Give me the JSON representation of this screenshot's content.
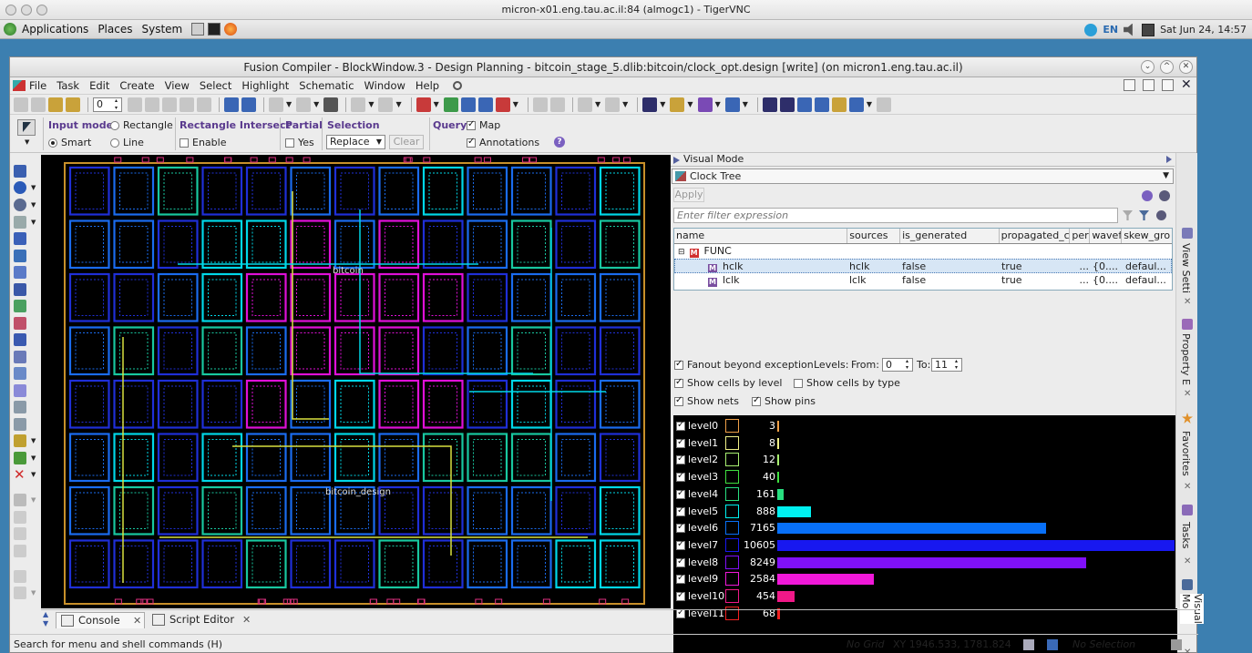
{
  "vnc": {
    "title": "micron-x01.eng.tau.ac.il:84 (almogc1) - TigerVNC"
  },
  "gnome": {
    "menus": [
      "Applications",
      "Places",
      "System"
    ],
    "lang": "EN",
    "clock": "Sat Jun 24, 14:57"
  },
  "window": {
    "title": "Fusion Compiler - BlockWindow.3 - Design Planning - bitcoin_stage_5.dlib:bitcoin/clock_opt.design [write] (on micron1.eng.tau.ac.il)"
  },
  "menubar": [
    "File",
    "Task",
    "Edit",
    "Create",
    "View",
    "Select",
    "Highlight",
    "Schematic",
    "Window",
    "Help"
  ],
  "toolbar": {
    "spin_value": "0"
  },
  "options": {
    "input_mode_label": "Input mode",
    "rectangle": "Rectangle",
    "smart": "Smart",
    "line": "Line",
    "rect_intersect_label": "Rectangle Intersect",
    "enable": "Enable",
    "partial_label": "Partial",
    "yes": "Yes",
    "selection_label": "Selection",
    "selection_value": "Replace",
    "clear": "Clear",
    "query_label": "Query",
    "map": "Map",
    "annotations": "Annotations"
  },
  "canvas": {
    "label_top": "bitcoin",
    "label_mid": "bitcoin_design",
    "grid_colors": [
      "#1f2fd8",
      "#1a6cf0",
      "#00d8e8",
      "#2a1ef0",
      "#8a10f0",
      "#e010d8",
      "#18c8a0"
    ]
  },
  "visual_mode": {
    "header": "Visual Mode",
    "mode": "Clock Tree",
    "apply": "Apply",
    "filter_placeholder": "Enter filter expression",
    "columns": [
      "name",
      "sources",
      "is_generated",
      "propagated_cl",
      "per",
      "wavefo",
      "skew_gro"
    ],
    "group": "FUNC",
    "rows": [
      {
        "name": "hclk",
        "sources": "hclk",
        "is_generated": "false",
        "propagated": "true",
        "per": "...",
        "wave": "{0....",
        "skew": "defaul..."
      },
      {
        "name": "lclk",
        "sources": "lclk",
        "is_generated": "false",
        "propagated": "true",
        "per": "...",
        "wave": "{0....",
        "skew": "defaul..."
      }
    ],
    "fanout_label": "Fanout beyond exception",
    "levels_label": "Levels:",
    "from_label": "From:",
    "from_value": "0",
    "to_label": "To:",
    "to_value": "11",
    "show_cells_level": "Show cells by level",
    "show_cells_type": "Show cells by type",
    "show_nets": "Show nets",
    "show_pins": "Show pins"
  },
  "levels": [
    {
      "name": "level0",
      "count": 3,
      "color": "#f0a048"
    },
    {
      "name": "level1",
      "count": 8,
      "color": "#f0f088"
    },
    {
      "name": "level2",
      "count": 12,
      "color": "#a8f070"
    },
    {
      "name": "level3",
      "count": 40,
      "color": "#40e040"
    },
    {
      "name": "level4",
      "count": 161,
      "color": "#28e080"
    },
    {
      "name": "level5",
      "count": 888,
      "color": "#00f0f0"
    },
    {
      "name": "level6",
      "count": 7165,
      "color": "#0870f8"
    },
    {
      "name": "level7",
      "count": 10605,
      "color": "#1818f0"
    },
    {
      "name": "level8",
      "count": 8249,
      "color": "#8010f8"
    },
    {
      "name": "level9",
      "count": 2584,
      "color": "#f018d8"
    },
    {
      "name": "level10",
      "count": 454,
      "color": "#f01888"
    },
    {
      "name": "level11",
      "count": 68,
      "color": "#f02020"
    }
  ],
  "sidetabs": [
    "View Setti",
    "Property E",
    "Favorites",
    "Tasks",
    "Visual Mo"
  ],
  "bottom_tabs": [
    "Console",
    "Script Editor"
  ],
  "status": {
    "hint": "Search for menu and shell commands (H)",
    "grid": "No Grid",
    "xy": "XY 1946.533, 1781.824",
    "selection": "No Selection"
  }
}
